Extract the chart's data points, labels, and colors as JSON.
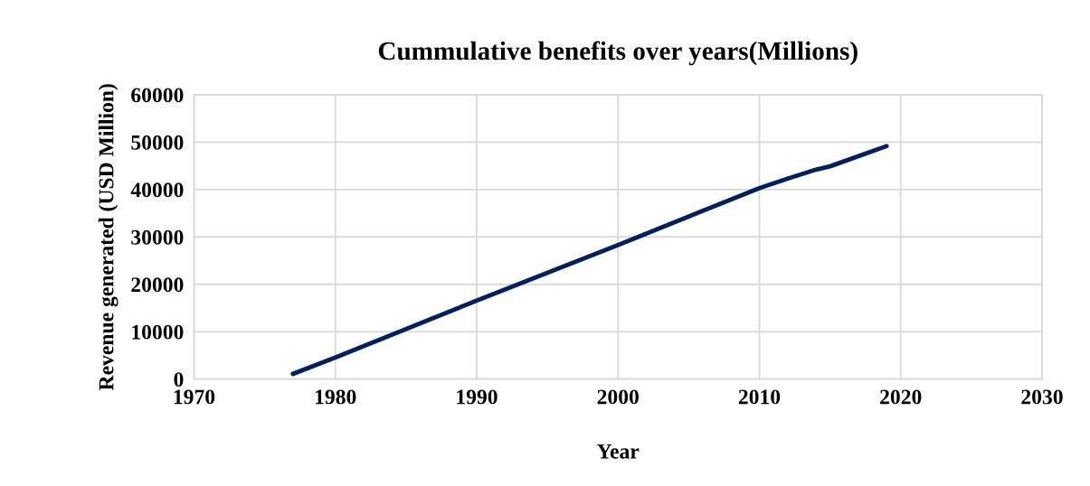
{
  "chart_data": {
    "type": "line",
    "title": "Cummulative benefits over years(Millions)",
    "xlabel": "Year",
    "ylabel": "Revenue generated (USD Million)",
    "x": [
      1977,
      1980,
      1990,
      2000,
      2010,
      2012,
      2014,
      2015,
      2019
    ],
    "series": [
      {
        "color": "#002060",
        "values": [
          1100,
          4550,
          16550,
          28300,
          40300,
          42300,
          44200,
          44900,
          49150
        ]
      }
    ],
    "xlim": [
      1970,
      2030
    ],
    "xticks": [
      1970,
      1980,
      1990,
      2000,
      2010,
      2020,
      2030
    ],
    "ylim": [
      0,
      60000
    ],
    "yticks": [
      0,
      10000,
      20000,
      30000,
      40000,
      50000,
      60000
    ],
    "grid": true,
    "marker": "none",
    "line_style": "solid"
  }
}
